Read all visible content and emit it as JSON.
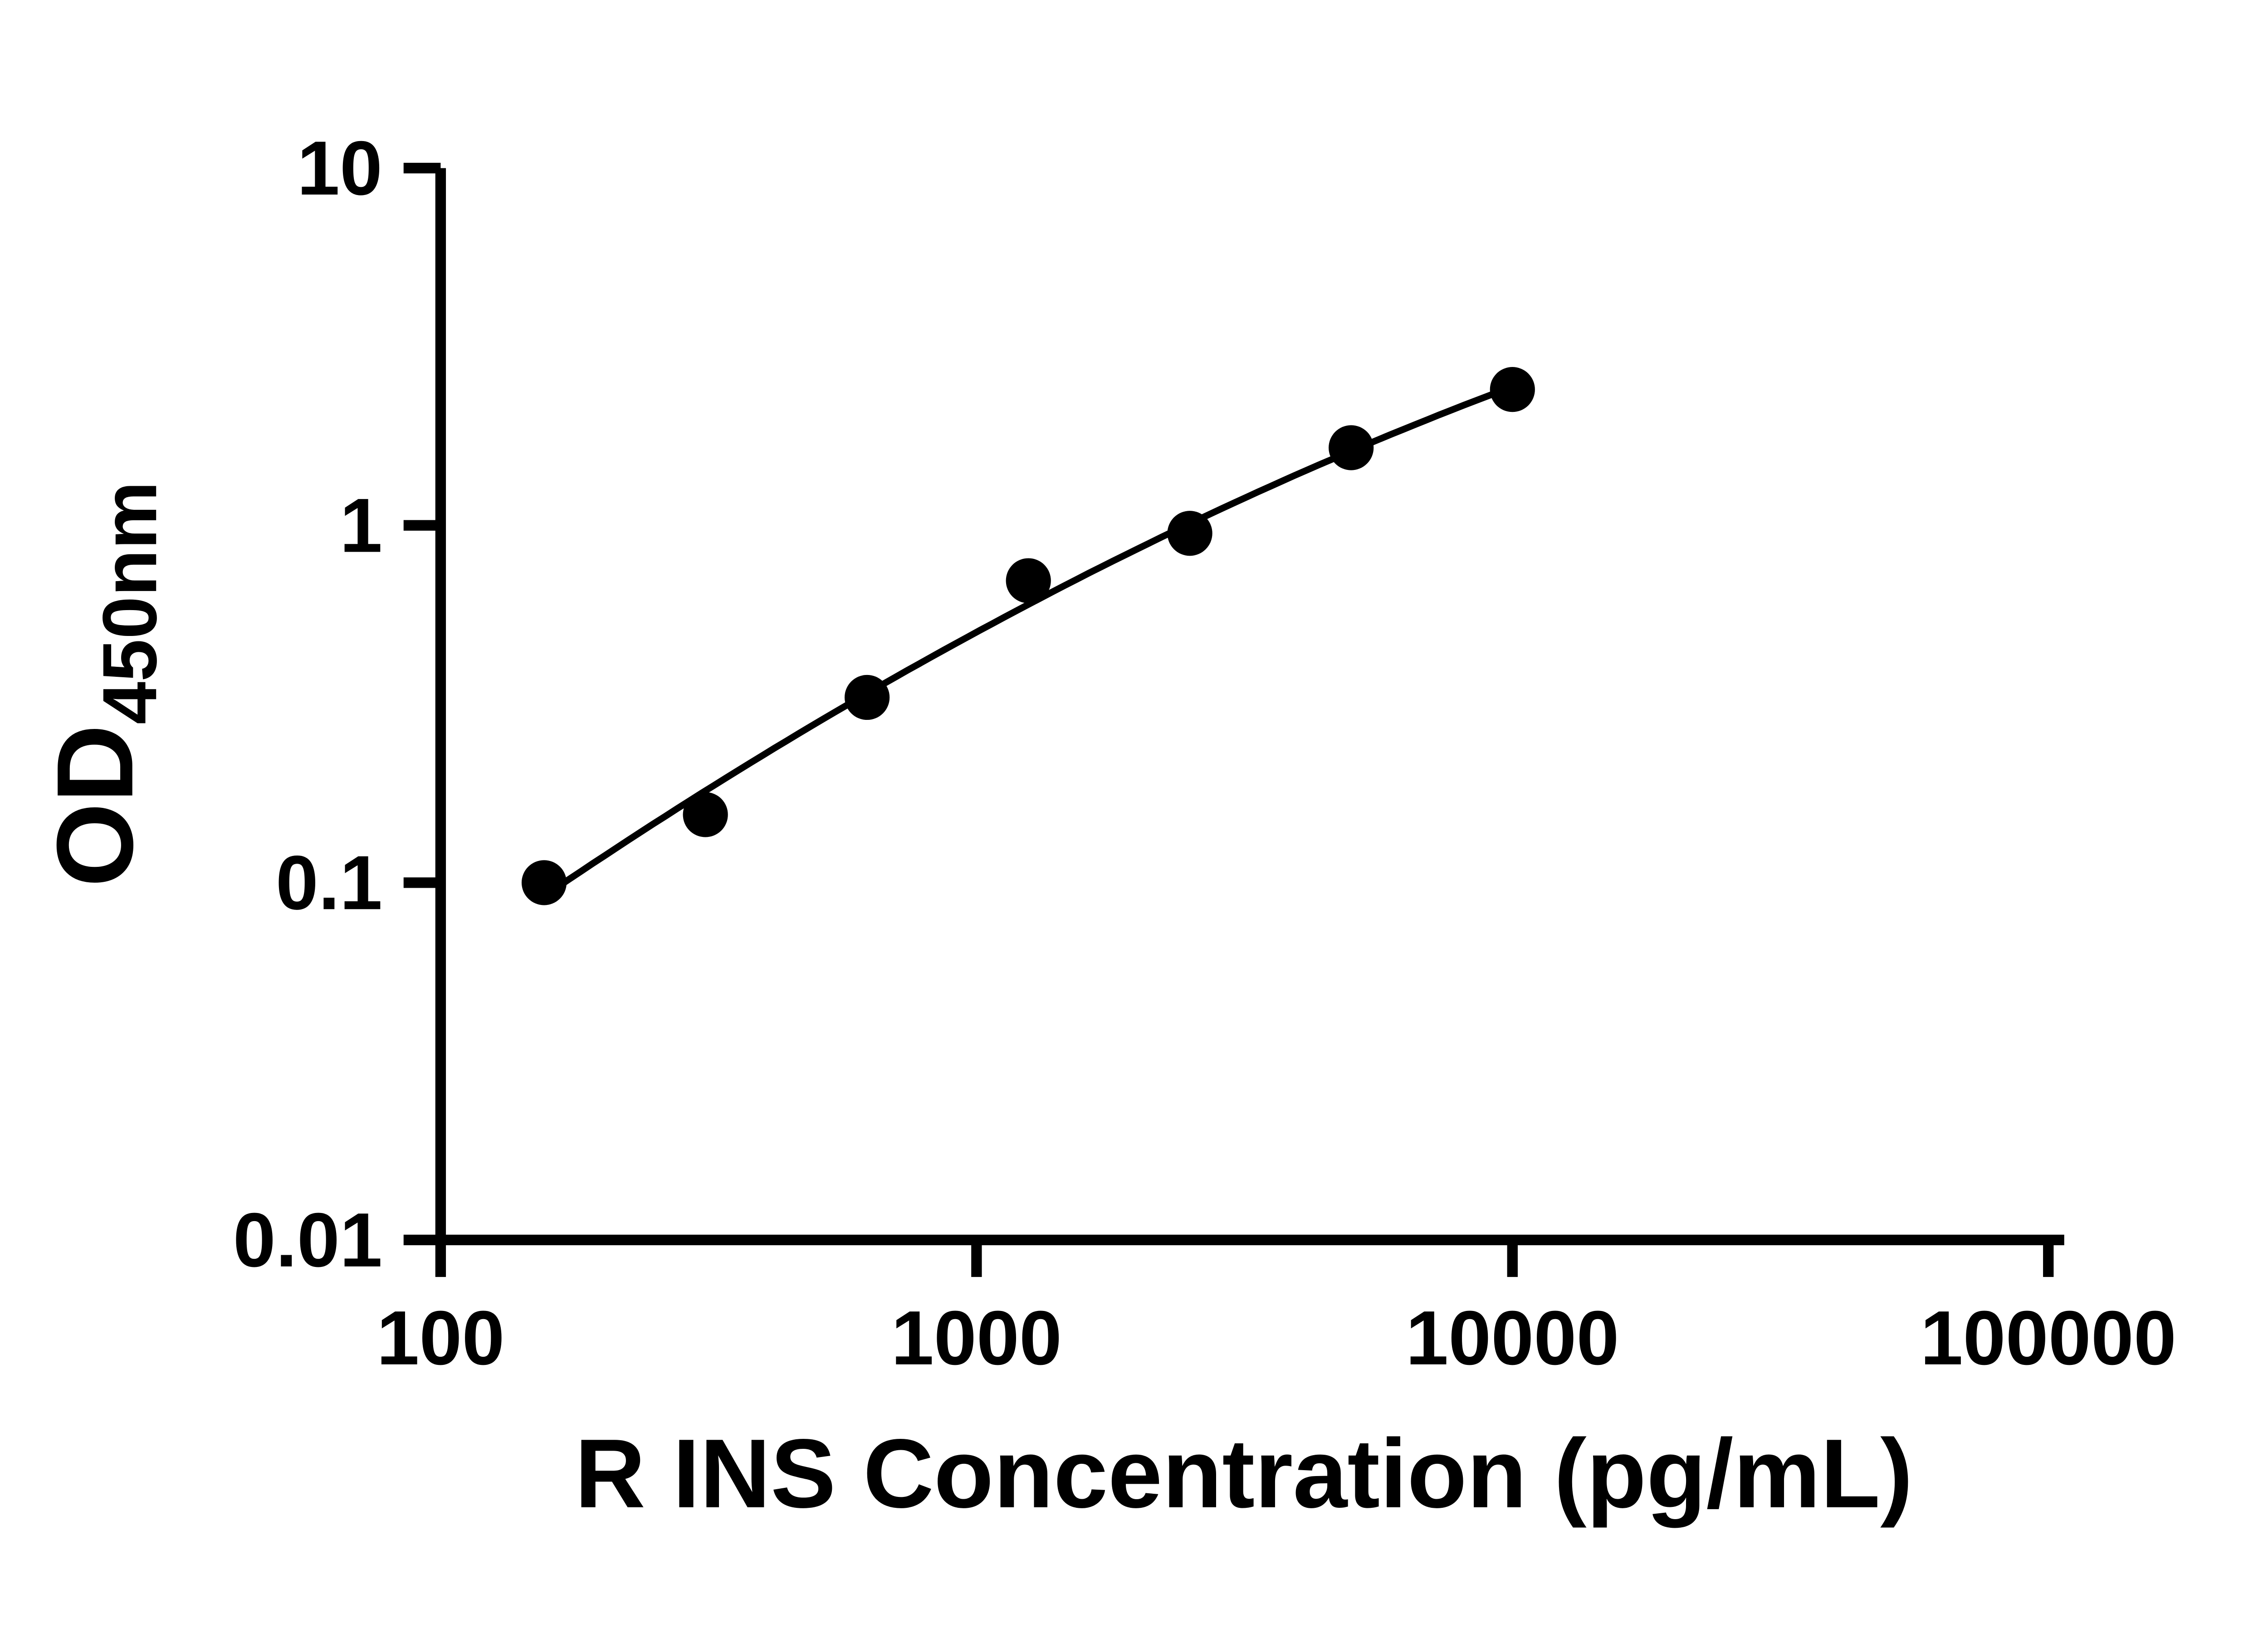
{
  "page": {
    "background": "#ffffff"
  },
  "chart_data": {
    "type": "scatter",
    "title": "",
    "xlabel": "R INS Concentration (pg/mL)",
    "ylabel_main": "OD",
    "ylabel_sub": "450nm",
    "x_scale": "log",
    "y_scale": "log",
    "xlim": [
      100,
      100000
    ],
    "ylim": [
      0.01,
      10
    ],
    "x_ticks": [
      100,
      1000,
      10000,
      100000
    ],
    "x_tick_labels": [
      "100",
      "1000",
      "10000",
      "100000"
    ],
    "y_ticks": [
      0.01,
      0.1,
      1,
      10
    ],
    "y_tick_labels": [
      "0.01",
      "0.1",
      "1",
      "10"
    ],
    "grid": false,
    "legend": null,
    "axis_color": "#000000",
    "marker_color": "#000000",
    "curve_color": "#000000",
    "series": [
      {
        "marker": "circle",
        "color": "#000000",
        "fit": "log-log smooth curve",
        "points": [
          {
            "x": 156,
            "y": 0.1
          },
          {
            "x": 312,
            "y": 0.155
          },
          {
            "x": 625,
            "y": 0.33
          },
          {
            "x": 1250,
            "y": 0.7
          },
          {
            "x": 2500,
            "y": 0.95
          },
          {
            "x": 5000,
            "y": 1.65
          },
          {
            "x": 10000,
            "y": 2.4
          }
        ]
      }
    ]
  }
}
